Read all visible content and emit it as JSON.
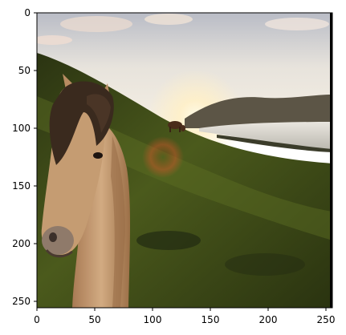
{
  "axes": {
    "x_ticks": [
      "0",
      "50",
      "100",
      "150",
      "200",
      "250"
    ],
    "y_ticks": [
      "0",
      "50",
      "100",
      "150",
      "200",
      "250"
    ]
  },
  "image": {
    "subject": "horse-on-hillside-at-sunset",
    "colors": {
      "sky_top": "#c9cbd2",
      "sky_glow": "#fff3d9",
      "hill_dark": "#1f2a10",
      "hill_grass": "#4c5a1e",
      "water": "#dcd9d3",
      "mountain": "#5a5446",
      "horse_coat": "#c49a70",
      "horse_mane": "#3a2a1e"
    }
  }
}
